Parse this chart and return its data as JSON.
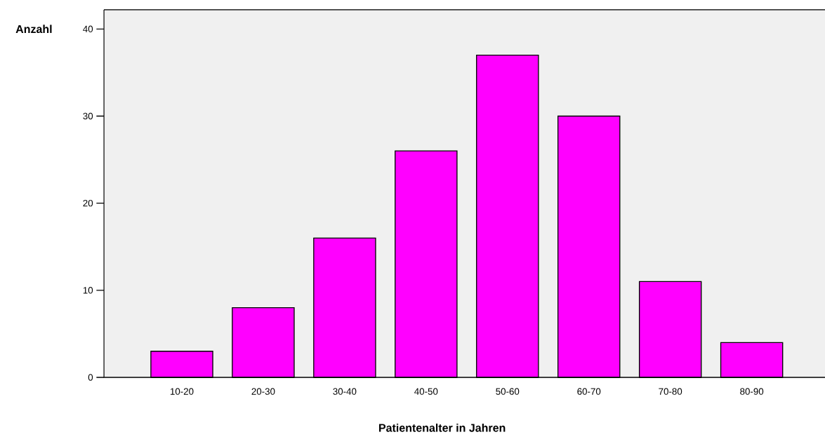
{
  "chart_data": {
    "type": "bar",
    "xlabel": "Patientenalter in Jahren",
    "ylabel": "Anzahl",
    "categories": [
      "10-20",
      "20-30",
      "30-40",
      "40-50",
      "50-60",
      "60-70",
      "70-80",
      "80-90"
    ],
    "values": [
      3,
      8,
      16,
      26,
      37,
      30,
      11,
      4
    ],
    "color": "#ff00ff",
    "ylim": [
      0,
      42.2
    ],
    "yticks": [
      0,
      10,
      20,
      30,
      40
    ]
  }
}
